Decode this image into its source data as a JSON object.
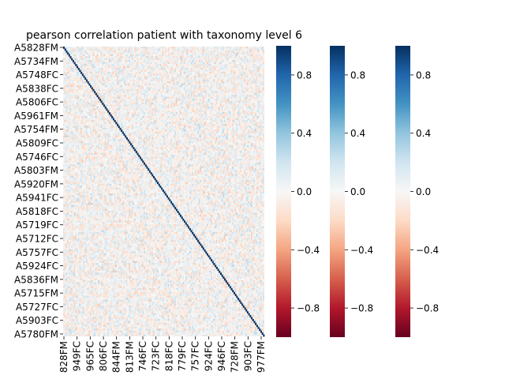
{
  "chart_data": {
    "type": "heatmap",
    "title": "pearson correlation patient with taxonomy level 6",
    "xlabel": "",
    "ylabel": "",
    "matrix_kind": "correlation",
    "diagonal_value": 1.0,
    "off_diagonal_range": [
      -0.3,
      0.3
    ],
    "y_tick_labels": [
      "A5828FM",
      "A5734FM",
      "A5748FC",
      "A5838FC",
      "A5806FC",
      "A5961FM",
      "A5754FM",
      "A5809FC",
      "A5746FC",
      "A5803FM",
      "A5920FM",
      "A5941FC",
      "A5818FC",
      "A5719FC",
      "A5712FC",
      "A5757FC",
      "A5924FC",
      "A5836FM",
      "A5715FM",
      "A5727FC",
      "A5903FC",
      "A5780FM"
    ],
    "x_tick_labels_visible": [
      "828FM",
      "949FC",
      "965FC",
      "806FC",
      "844FM",
      "813FM",
      "746FC",
      "723FC",
      "818FC",
      "779FC",
      "757FC",
      "924FC",
      "946FC",
      "728FM",
      "903FC",
      "977FM"
    ],
    "colormap": "RdBu",
    "colorbars": [
      {
        "vmin": -1.0,
        "vmax": 1.0,
        "ticks": [
          "0.8",
          "0.4",
          "0.0",
          "−0.4",
          "−0.8"
        ]
      },
      {
        "vmin": -1.0,
        "vmax": 1.0,
        "ticks": [
          "0.8",
          "0.4",
          "0.0",
          "−0.4",
          "−0.8"
        ]
      },
      {
        "vmin": -1.0,
        "vmax": 1.0,
        "ticks": [
          "0.8",
          "0.4",
          "0.0",
          "−0.4",
          "−0.8"
        ]
      }
    ],
    "colors": {
      "high": "#053061",
      "mid": "#f7f7f7",
      "low": "#67001f"
    }
  }
}
